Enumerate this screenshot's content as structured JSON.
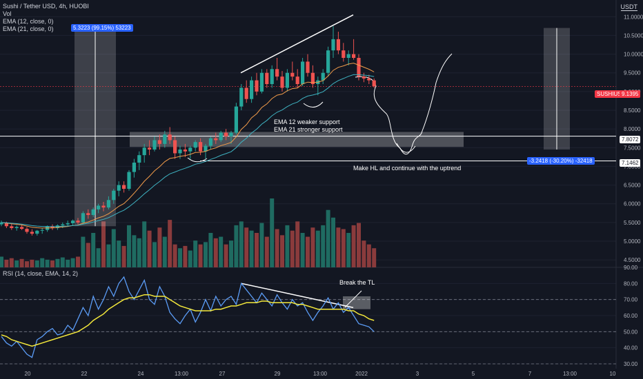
{
  "header": {
    "symbol_line": "Sushi / Tether USD, 4h, HUOBI",
    "vol_label": "Vol",
    "ema12_label": "EMA (12, close, 0)",
    "ema21_label": "EMA (21, close, 0)",
    "unit": "USDT"
  },
  "rsi_panel": {
    "legend": "RSI (14, close, EMA, 14, 2)"
  },
  "tags": {
    "top_measure": "5.3223 (99.15%) 53223",
    "bottom_measure": "-3.2418 (-30.20%) -32418",
    "symbol_price_name": "SUSHIUSDT",
    "symbol_price": "9.1395",
    "line_7807": "7.8072",
    "line_7146": "7.1462"
  },
  "annotations": {
    "ema_note_1": "EMA 12 weaker support",
    "ema_note_2": "EMA 21 stronger support",
    "hl_note": "Make HL and continue with the uptrend",
    "tl_note": "Break the TL"
  },
  "colors": {
    "background": "#131722",
    "up": "#26a69a",
    "down": "#ef5350",
    "ema12": "#f39c4a",
    "ema21": "#3fb3c2",
    "rsi": "#5b9cf6",
    "rsi_ma": "#f5e93b",
    "tag_blue": "#2962ff",
    "tag_red": "#f23645"
  },
  "chart_data": [
    {
      "type": "candlestick",
      "title": "Sushi / Tether USD, 4h, HUOBI",
      "y_axis_ticks": [
        "11.0000",
        "10.5000",
        "10.0000",
        "9.5000",
        "9.0000",
        "8.5000",
        "8.0000",
        "7.5000",
        "7.0000",
        "6.5000",
        "6.0000",
        "5.5000",
        "5.0000",
        "4.5000"
      ],
      "ylim": [
        4.3,
        11.3
      ],
      "x_axis_ticks": [
        "20",
        "22",
        "24",
        "13:00",
        "27",
        "29",
        "13:00",
        "2022",
        "3",
        "5",
        "7",
        "13:00",
        "10"
      ],
      "levels": [
        7.8072,
        7.1462
      ],
      "last_price": 9.1395,
      "candles": [
        [
          5.45,
          5.55,
          5.4,
          5.5
        ],
        [
          5.5,
          5.52,
          5.35,
          5.4
        ],
        [
          5.4,
          5.48,
          5.3,
          5.35
        ],
        [
          5.35,
          5.42,
          5.28,
          5.38
        ],
        [
          5.38,
          5.45,
          5.3,
          5.33
        ],
        [
          5.33,
          5.38,
          5.2,
          5.25
        ],
        [
          5.25,
          5.32,
          5.15,
          5.2
        ],
        [
          5.2,
          5.3,
          5.15,
          5.28
        ],
        [
          5.28,
          5.35,
          5.2,
          5.3
        ],
        [
          5.3,
          5.42,
          5.25,
          5.4
        ],
        [
          5.4,
          5.45,
          5.3,
          5.35
        ],
        [
          5.35,
          5.45,
          5.3,
          5.42
        ],
        [
          5.42,
          5.5,
          5.35,
          5.45
        ],
        [
          5.45,
          5.55,
          5.4,
          5.48
        ],
        [
          5.48,
          5.58,
          5.42,
          5.55
        ],
        [
          5.55,
          5.62,
          5.45,
          5.5
        ],
        [
          5.5,
          5.8,
          5.45,
          5.75
        ],
        [
          5.75,
          5.85,
          5.6,
          5.7
        ],
        [
          5.7,
          5.9,
          5.65,
          5.85
        ],
        [
          5.85,
          6.0,
          5.75,
          5.95
        ],
        [
          5.95,
          6.05,
          5.8,
          5.9
        ],
        [
          5.9,
          6.2,
          5.85,
          6.1
        ],
        [
          6.1,
          6.4,
          6.0,
          6.35
        ],
        [
          6.35,
          6.6,
          6.2,
          6.5
        ],
        [
          6.5,
          6.6,
          6.3,
          6.4
        ],
        [
          6.4,
          6.9,
          6.35,
          6.85
        ],
        [
          6.85,
          7.2,
          6.7,
          7.1
        ],
        [
          7.1,
          7.4,
          6.9,
          7.3
        ],
        [
          7.3,
          7.6,
          7.1,
          7.5
        ],
        [
          7.5,
          7.7,
          7.3,
          7.45
        ],
        [
          7.45,
          7.8,
          7.4,
          7.7
        ],
        [
          7.7,
          7.85,
          7.45,
          7.6
        ],
        [
          7.6,
          7.95,
          7.5,
          7.85
        ],
        [
          7.85,
          8.05,
          7.6,
          7.7
        ],
        [
          7.7,
          7.8,
          7.2,
          7.35
        ],
        [
          7.35,
          7.55,
          7.2,
          7.45
        ],
        [
          7.45,
          7.6,
          7.25,
          7.4
        ],
        [
          7.4,
          7.55,
          7.2,
          7.5
        ],
        [
          7.5,
          7.7,
          7.4,
          7.65
        ],
        [
          7.65,
          7.75,
          7.3,
          7.4
        ],
        [
          7.4,
          7.6,
          7.2,
          7.55
        ],
        [
          7.55,
          7.8,
          7.45,
          7.75
        ],
        [
          7.75,
          7.9,
          7.6,
          7.7
        ],
        [
          7.7,
          7.95,
          7.65,
          7.9
        ],
        [
          7.9,
          8.0,
          7.7,
          7.8
        ],
        [
          7.8,
          7.95,
          7.6,
          7.9
        ],
        [
          7.9,
          8.7,
          7.85,
          8.6
        ],
        [
          8.6,
          9.2,
          8.5,
          9.1
        ],
        [
          9.1,
          9.3,
          8.7,
          8.8
        ],
        [
          8.8,
          9.4,
          8.7,
          9.3
        ],
        [
          9.3,
          9.5,
          8.9,
          9.0
        ],
        [
          9.0,
          9.6,
          8.95,
          9.5
        ],
        [
          9.5,
          9.6,
          9.1,
          9.2
        ],
        [
          9.2,
          9.7,
          9.1,
          9.6
        ],
        [
          9.6,
          9.9,
          9.3,
          9.4
        ],
        [
          9.4,
          9.55,
          9.0,
          9.1
        ],
        [
          9.1,
          9.6,
          9.0,
          9.5
        ],
        [
          9.5,
          9.8,
          9.3,
          9.4
        ],
        [
          9.4,
          9.6,
          9.1,
          9.2
        ],
        [
          9.2,
          9.9,
          9.15,
          9.8
        ],
        [
          9.8,
          10.0,
          9.4,
          9.5
        ],
        [
          9.5,
          9.7,
          9.1,
          9.2
        ],
        [
          9.2,
          9.4,
          8.9,
          9.3
        ],
        [
          9.3,
          9.6,
          9.2,
          9.5
        ],
        [
          9.5,
          10.2,
          9.4,
          10.1
        ],
        [
          10.1,
          10.75,
          9.9,
          10.4
        ],
        [
          10.4,
          10.6,
          10.0,
          10.1
        ],
        [
          10.1,
          10.3,
          9.8,
          9.9
        ],
        [
          9.9,
          10.1,
          9.7,
          10.0
        ],
        [
          10.0,
          10.4,
          9.85,
          9.9
        ],
        [
          9.9,
          10.0,
          9.3,
          9.4
        ],
        [
          9.4,
          9.5,
          9.25,
          9.35
        ],
        [
          9.35,
          9.45,
          9.2,
          9.3
        ],
        [
          9.3,
          9.35,
          9.1,
          9.14
        ]
      ],
      "volume": [
        14,
        10,
        12,
        9,
        11,
        8,
        10,
        9,
        12,
        10,
        9,
        11,
        13,
        10,
        12,
        14,
        40,
        32,
        45,
        25,
        60,
        30,
        50,
        35,
        28,
        55,
        42,
        38,
        60,
        48,
        33,
        52,
        40,
        62,
        30,
        25,
        28,
        22,
        35,
        30,
        33,
        45,
        38,
        40,
        30,
        35,
        55,
        60,
        52,
        48,
        45,
        58,
        40,
        90,
        50,
        42,
        55,
        48,
        60,
        45,
        40,
        52,
        48,
        55,
        75,
        65,
        52,
        50,
        45,
        55,
        58,
        35,
        30,
        25
      ]
    },
    {
      "type": "line",
      "title": "RSI (14, close, EMA, 14, 2)",
      "y_axis_ticks": [
        "90.00",
        "80.00",
        "70.00",
        "60.00",
        "50.00",
        "40.00",
        "30.00"
      ],
      "ylim": [
        27,
        90
      ],
      "series": [
        {
          "name": "RSI",
          "values": [
            47,
            43,
            41,
            44,
            40,
            36,
            34,
            45,
            47,
            50,
            52,
            48,
            49,
            54,
            51,
            58,
            65,
            60,
            72,
            64,
            70,
            78,
            72,
            80,
            84,
            75,
            70,
            76,
            82,
            70,
            67,
            78,
            72,
            62,
            58,
            55,
            60,
            64,
            56,
            62,
            70,
            63,
            72,
            66,
            70,
            72,
            67,
            80,
            76,
            72,
            68,
            74,
            70,
            66,
            73,
            68,
            64,
            70,
            66,
            68,
            62,
            57,
            62,
            66,
            71,
            64,
            68,
            62,
            65,
            60,
            55,
            54,
            53,
            50
          ]
        },
        {
          "name": "RSI EMA",
          "values": [
            48,
            47,
            45,
            44,
            43,
            42,
            41,
            42,
            43,
            44,
            45,
            46,
            47,
            48,
            49,
            50,
            52,
            54,
            57,
            59,
            61,
            64,
            66,
            68,
            70,
            71,
            71,
            72,
            73,
            73,
            72,
            72,
            72,
            70,
            68,
            66,
            65,
            64,
            63,
            63,
            63,
            63,
            64,
            64,
            65,
            66,
            66,
            67,
            68,
            68,
            68,
            69,
            69,
            68,
            68,
            68,
            68,
            68,
            67,
            67,
            66,
            65,
            64,
            64,
            64,
            64,
            64,
            64,
            63,
            63,
            61,
            60,
            58,
            57
          ]
        }
      ]
    }
  ]
}
